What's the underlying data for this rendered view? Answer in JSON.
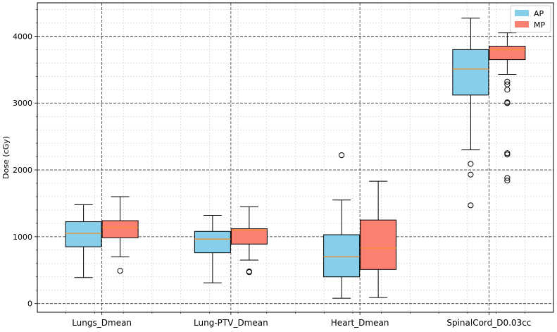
{
  "chart_data": {
    "type": "boxplot",
    "title": "",
    "xlabel": "",
    "ylabel": "Dose (cGy)",
    "ylim": [
      -130,
      4500
    ],
    "yticks": [
      0,
      1000,
      2000,
      3000,
      4000
    ],
    "yticks_minor_step": 200,
    "grid": true,
    "legend_position": "top-right",
    "categories": [
      "Lungs_Dmean",
      "Lung-PTV_Dmean",
      "Heart_Dmean",
      "SpinalCord_D0.03cc"
    ],
    "series": [
      {
        "name": "AP",
        "color": "#87CEEB",
        "boxes": [
          {
            "whislo": 390,
            "q1": 850,
            "med": 1050,
            "q3": 1225,
            "whishi": 1480,
            "fliers": []
          },
          {
            "whislo": 310,
            "q1": 760,
            "med": 965,
            "q3": 1080,
            "whishi": 1320,
            "fliers": []
          },
          {
            "whislo": 80,
            "q1": 400,
            "med": 700,
            "q3": 1030,
            "whishi": 1550,
            "fliers": [
              2220
            ]
          },
          {
            "whislo": 2300,
            "q1": 3120,
            "med": 3510,
            "q3": 3800,
            "whishi": 4270,
            "fliers": [
              2090,
              1930,
              1470
            ]
          }
        ]
      },
      {
        "name": "MP",
        "color": "#FA8072",
        "boxes": [
          {
            "whislo": 700,
            "q1": 985,
            "med": 1140,
            "q3": 1240,
            "whishi": 1600,
            "fliers": [
              490
            ]
          },
          {
            "whislo": 650,
            "q1": 890,
            "med": 1100,
            "q3": 1120,
            "whishi": 1450,
            "fliers": [
              480,
              470
            ]
          },
          {
            "whislo": 90,
            "q1": 510,
            "med": 830,
            "q3": 1250,
            "whishi": 1830,
            "fliers": []
          },
          {
            "whislo": 3430,
            "q1": 3650,
            "med": 3800,
            "q3": 3850,
            "whishi": 4050,
            "fliers": [
              3320,
              3280,
              3200,
              3010,
              3000,
              2250,
              2230,
              1880,
              1840
            ]
          }
        ]
      }
    ],
    "median_color": "#F28E2B"
  }
}
